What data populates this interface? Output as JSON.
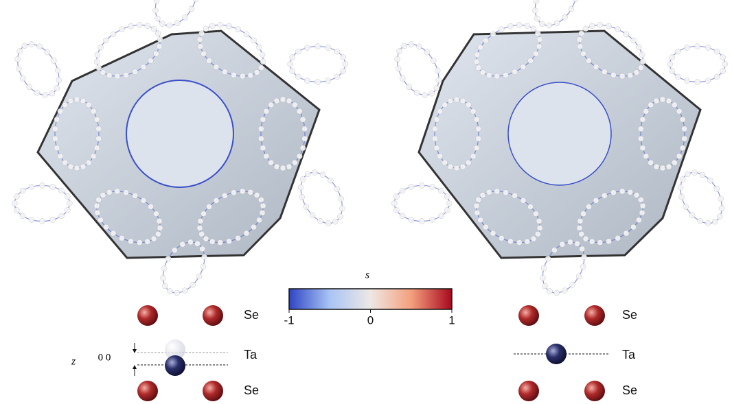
{
  "colorbar": {
    "label": "s",
    "lim": [
      -1,
      1
    ],
    "ticks": [
      -1,
      0,
      1
    ],
    "colors": [
      "#2f45c4",
      "#a9c4f4",
      "#eee8e4",
      "#f3a07e",
      "#a8081e"
    ]
  },
  "left_panel": {
    "atoms": [
      "Se",
      "Ta",
      "Se"
    ],
    "z_label": "z",
    "z_value": "0 0"
  },
  "right_panel": {
    "atoms": [
      "Se",
      "Ta",
      "Se"
    ]
  }
}
